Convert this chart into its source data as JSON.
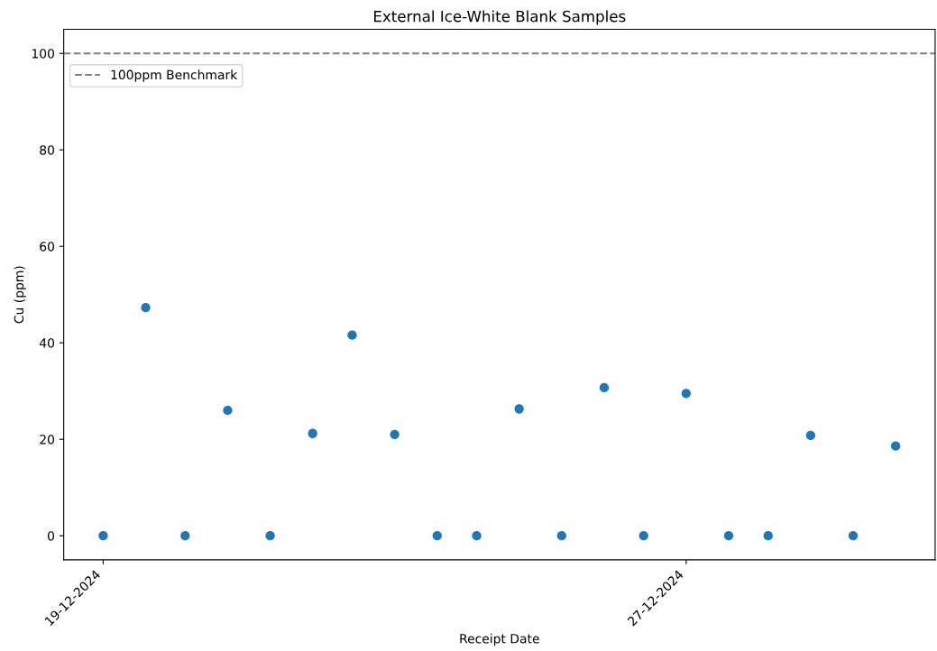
{
  "chart_data": {
    "type": "scatter",
    "title": "External Ice-White Blank Samples",
    "xlabel": "Receipt Date",
    "ylabel": "Cu (ppm)",
    "x": [
      "2024-12-19T00:00",
      "2024-12-19T14:00",
      "2024-12-20T03:00",
      "2024-12-20T17:00",
      "2024-12-21T07:00",
      "2024-12-21T21:00",
      "2024-12-22T10:00",
      "2024-12-23T00:00",
      "2024-12-23T14:00",
      "2024-12-24T03:00",
      "2024-12-24T17:00",
      "2024-12-25T07:00",
      "2024-12-25T21:00",
      "2024-12-26T10:00",
      "2024-12-27T00:00",
      "2024-12-27T14:00",
      "2024-12-28T03:00",
      "2024-12-28T17:00",
      "2024-12-29T07:00",
      "2024-12-29T21:00"
    ],
    "series": [
      {
        "color": "#1f77b4",
        "values": [
          0,
          47.3,
          0,
          26.0,
          0,
          21.2,
          41.6,
          21.0,
          0,
          0,
          26.3,
          0,
          30.7,
          0,
          29.5,
          0,
          0,
          20.8,
          0,
          18.6
        ]
      }
    ],
    "marker": "circle",
    "xlim": [
      "2024-12-18T11:00",
      "2024-12-30T10:00"
    ],
    "xticks": [
      {
        "value": "2024-12-19",
        "label": "19-12-2024"
      },
      {
        "value": "2024-12-27",
        "label": "27-12-2024"
      }
    ],
    "ylim": [
      -5,
      105
    ],
    "yticks": [
      0,
      20,
      40,
      60,
      80,
      100
    ],
    "ref_lines": [
      {
        "axis": "y",
        "value": 100,
        "label": "100ppm Benchmark",
        "color": "#808080",
        "line_style": "dashed"
      }
    ],
    "legend": "top left",
    "grid": false
  }
}
